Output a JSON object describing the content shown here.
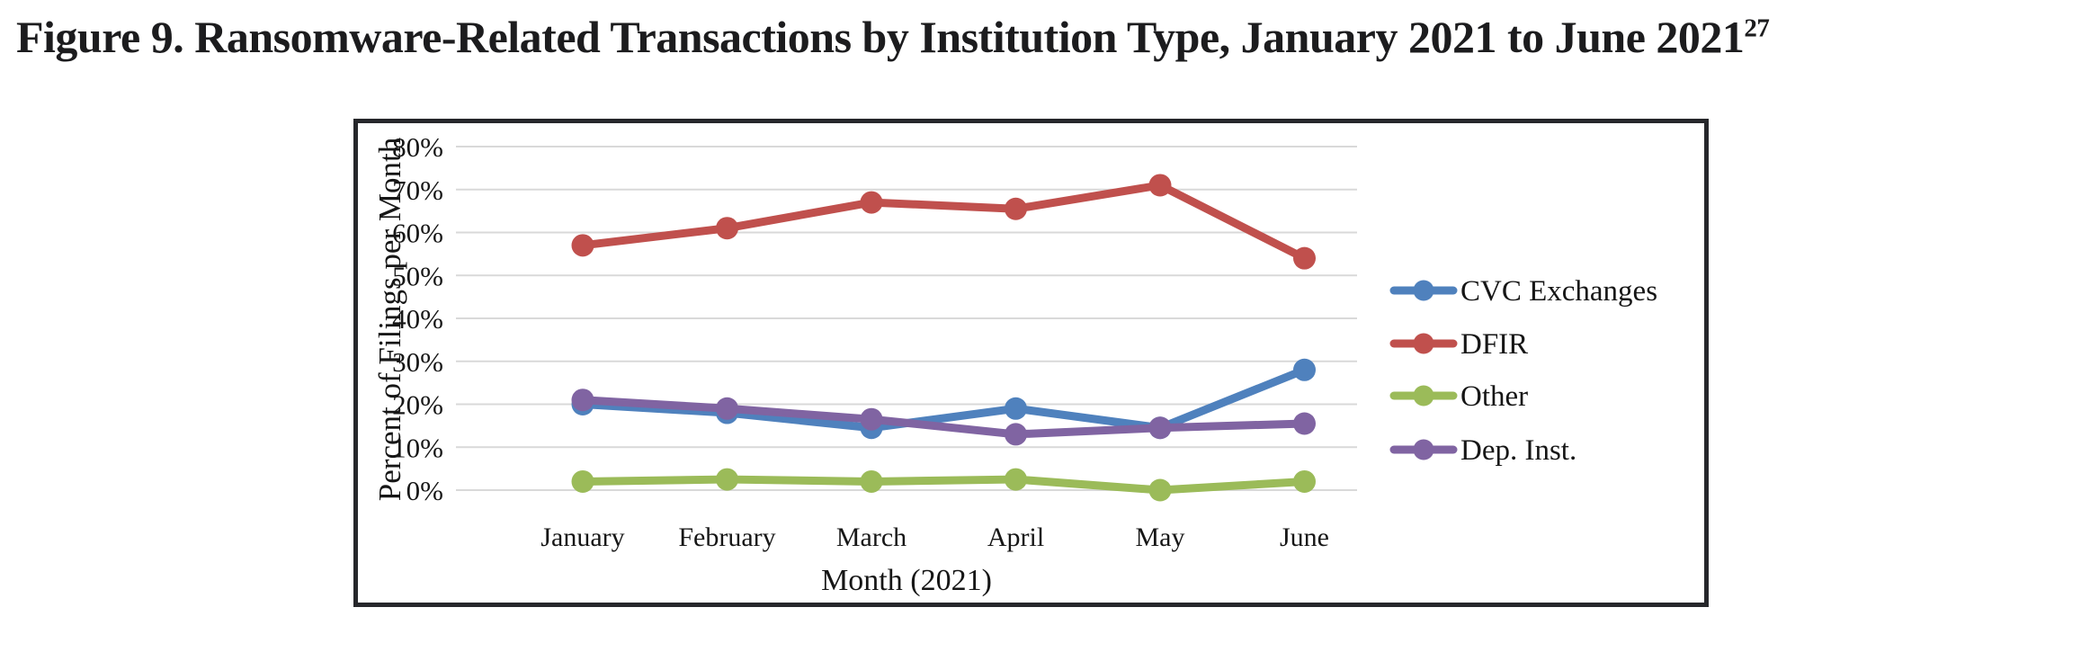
{
  "figure": {
    "title": "Figure 9. Ransomware-Related Transactions by Institution Type, January 2021 to June 2021",
    "title_superscript": "27"
  },
  "chart_data": {
    "type": "line",
    "categories": [
      "January",
      "February",
      "March",
      "April",
      "May",
      "June"
    ],
    "series": [
      {
        "name": "CVC Exchanges",
        "color": "#4F81BD",
        "values": [
          20,
          18,
          14.5,
          19,
          14.5,
          28
        ]
      },
      {
        "name": "DFIR",
        "color": "#C0504D",
        "values": [
          57,
          61,
          67,
          65.5,
          71,
          54
        ]
      },
      {
        "name": "Other",
        "color": "#9BBB59",
        "values": [
          2,
          2.5,
          2,
          2.5,
          0,
          2
        ]
      },
      {
        "name": "Dep. Inst.",
        "color": "#8064A2",
        "values": [
          21,
          19,
          16.5,
          13,
          14.5,
          15.5
        ]
      }
    ],
    "xlabel": "Month (2021)",
    "ylabel": "Percent of Filings per Month",
    "ylim": [
      0,
      80
    ],
    "ytick_values": [
      0,
      10,
      20,
      30,
      40,
      50,
      60,
      70,
      80
    ],
    "yticks": [
      "0%",
      "10%",
      "20%",
      "30%",
      "40%",
      "50%",
      "60%",
      "70%",
      "80%"
    ],
    "grid": true,
    "gridline_color": "#D9D9D9",
    "legend_position": "right"
  }
}
